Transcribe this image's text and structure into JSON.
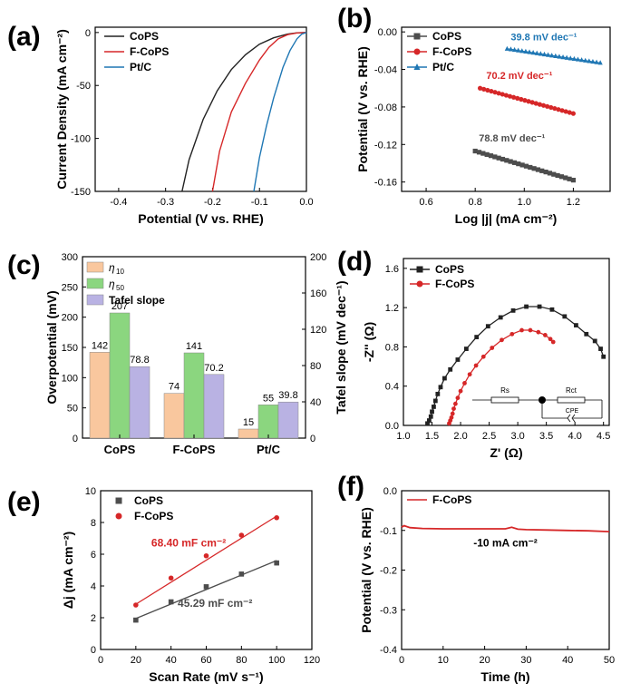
{
  "colors": {
    "black": "#222222",
    "red": "#d62728",
    "blue": "#1f77b4",
    "gray": "#4d4d4d",
    "bar_orange": "#f9c79e",
    "bar_green": "#8bd67f",
    "bar_purple": "#b9b2e3"
  },
  "chart_data": [
    {
      "panel": "(a)",
      "type": "line",
      "xlabel": "Potential (V vs. RHE)",
      "ylabel": "Current Density (mA cm⁻²)",
      "xlim": [
        -0.45,
        0.0
      ],
      "ylim": [
        -150,
        5
      ],
      "xticks": [
        "-0.4",
        "-0.3",
        "-0.2",
        "-0.1",
        "0.0"
      ],
      "yticks": [
        "0",
        "-50",
        "-100",
        "-150"
      ],
      "legend": "top-left",
      "series": [
        {
          "name": "CoPS",
          "color": "black",
          "x": [
            -0.265,
            -0.25,
            -0.22,
            -0.19,
            -0.16,
            -0.13,
            -0.1,
            -0.07,
            -0.04,
            -0.02,
            0.0
          ],
          "y": [
            -150,
            -120,
            -82,
            -55,
            -35,
            -21,
            -11,
            -5,
            -1.5,
            -0.3,
            0
          ]
        },
        {
          "name": "F-CoPS",
          "color": "red",
          "x": [
            -0.2,
            -0.185,
            -0.16,
            -0.13,
            -0.1,
            -0.08,
            -0.06,
            -0.04,
            -0.02,
            0.0
          ],
          "y": [
            -150,
            -112,
            -75,
            -48,
            -26,
            -14,
            -6,
            -2,
            -0.4,
            0
          ]
        },
        {
          "name": "Pt/C",
          "color": "blue",
          "x": [
            -0.112,
            -0.1,
            -0.085,
            -0.07,
            -0.05,
            -0.035,
            -0.02,
            -0.01,
            0.0
          ],
          "y": [
            -150,
            -118,
            -88,
            -62,
            -33,
            -17,
            -6,
            -1.5,
            0
          ]
        }
      ]
    },
    {
      "panel": "(b)",
      "type": "scatter",
      "xlabel": "Log |j| (mA cm⁻²)",
      "ylabel": "Potential (V vs. RHE)",
      "xlim": [
        0.5,
        1.35
      ],
      "ylim": [
        -0.17,
        0.005
      ],
      "xticks": [
        "0.6",
        "0.8",
        "1.0",
        "1.2"
      ],
      "yticks": [
        "0.00",
        "-0.04",
        "-0.08",
        "-0.12",
        "-0.16"
      ],
      "legend": "top-left",
      "series": [
        {
          "name": "CoPS",
          "color": "gray",
          "marker": "square",
          "x_range": [
            0.8,
            1.2
          ],
          "y_range": [
            -0.127,
            -0.158
          ],
          "annotation": "78.8 mV dec⁻¹"
        },
        {
          "name": "F-CoPS",
          "color": "red",
          "marker": "circle",
          "x_range": [
            0.82,
            1.2
          ],
          "y_range": [
            -0.06,
            -0.087
          ],
          "annotation": "70.2 mV dec⁻¹"
        },
        {
          "name": "Pt/C",
          "color": "blue",
          "marker": "triangle",
          "x_range": [
            0.93,
            1.31
          ],
          "y_range": [
            -0.018,
            -0.033
          ],
          "annotation": "39.8 mV dec⁻¹"
        }
      ]
    },
    {
      "panel": "(c)",
      "type": "bar",
      "categories": [
        "CoPS",
        "F-CoPS",
        "Pt/C"
      ],
      "ylabel": "Overpotential (mV)",
      "ylabel_right": "Tafel slope (mV dec⁻¹)",
      "ylim": [
        0,
        300
      ],
      "ylim_right": [
        0,
        200
      ],
      "yticks": [
        "0",
        "50",
        "100",
        "150",
        "200",
        "250",
        "300"
      ],
      "yticks_right": [
        "0",
        "40",
        "80",
        "120",
        "160",
        "200"
      ],
      "legend": "top-left",
      "series": [
        {
          "name": "η",
          "sub": "10",
          "color": "bar_orange",
          "values": [
            142,
            74,
            15
          ],
          "labels": [
            "142",
            "74",
            "15"
          ]
        },
        {
          "name": "η",
          "sub": "50",
          "color": "bar_green",
          "values": [
            207,
            141,
            55
          ],
          "labels": [
            "207",
            "141",
            "55"
          ]
        },
        {
          "name": "Tafel slope",
          "color": "bar_purple",
          "values": [
            78.8,
            70.2,
            39.8
          ],
          "labels": [
            "78.8",
            "70.2",
            "39.8"
          ],
          "axis": "right"
        }
      ]
    },
    {
      "panel": "(d)",
      "type": "scatter",
      "xlabel": "Z' (Ω)",
      "ylabel": "-Z'' (Ω)",
      "xlim": [
        1.0,
        4.6
      ],
      "ylim": [
        0,
        1.7
      ],
      "xticks": [
        "1.0",
        "1.5",
        "2.0",
        "2.5",
        "3.0",
        "3.5",
        "4.0",
        "4.5"
      ],
      "yticks": [
        "0.0",
        "0.4",
        "0.8",
        "1.2",
        "1.6"
      ],
      "legend": "top-left",
      "circuit_labels": [
        "Rs",
        "Rct",
        "CPE"
      ],
      "series": [
        {
          "name": "CoPS",
          "color": "black",
          "marker": "square",
          "x": [
            1.42,
            1.45,
            1.48,
            1.5,
            1.53,
            1.56,
            1.6,
            1.65,
            1.72,
            1.82,
            1.95,
            2.1,
            2.28,
            2.48,
            2.7,
            2.92,
            3.15,
            3.38,
            3.6,
            3.82,
            4.02,
            4.2,
            4.35,
            4.45,
            4.5
          ],
          "y": [
            0.02,
            0.05,
            0.09,
            0.14,
            0.19,
            0.25,
            0.32,
            0.39,
            0.48,
            0.57,
            0.67,
            0.78,
            0.9,
            1.01,
            1.1,
            1.17,
            1.21,
            1.21,
            1.18,
            1.11,
            1.02,
            0.93,
            0.86,
            0.78,
            0.7
          ]
        },
        {
          "name": "F-CoPS",
          "color": "red",
          "marker": "circle",
          "x": [
            1.8,
            1.82,
            1.84,
            1.86,
            1.88,
            1.91,
            1.95,
            2.0,
            2.07,
            2.16,
            2.27,
            2.4,
            2.55,
            2.72,
            2.9,
            3.07,
            3.22,
            3.36,
            3.48,
            3.57,
            3.62
          ],
          "y": [
            0.02,
            0.05,
            0.08,
            0.12,
            0.17,
            0.22,
            0.28,
            0.35,
            0.43,
            0.52,
            0.61,
            0.7,
            0.79,
            0.87,
            0.93,
            0.97,
            0.97,
            0.95,
            0.92,
            0.88,
            0.85
          ]
        }
      ]
    },
    {
      "panel": "(e)",
      "type": "scatter",
      "xlabel": "Scan Rate (mV s⁻¹)",
      "ylabel": "Δj (mA cm⁻²)",
      "xlim": [
        0,
        120
      ],
      "ylim": [
        0,
        10
      ],
      "xticks": [
        "0",
        "20",
        "40",
        "60",
        "80",
        "100",
        "120"
      ],
      "yticks": [
        "0",
        "2",
        "4",
        "6",
        "8",
        "10"
      ],
      "legend": "top-left",
      "series": [
        {
          "name": "CoPS",
          "color": "gray",
          "marker": "square",
          "x": [
            20,
            40,
            60,
            80,
            100
          ],
          "y": [
            1.85,
            3.0,
            3.95,
            4.75,
            5.45
          ],
          "fit": [
            [
              20,
              1.95
            ],
            [
              100,
              5.6
            ]
          ],
          "annotation": "45.29 mF cm⁻²"
        },
        {
          "name": "F-CoPS",
          "color": "red",
          "marker": "circle",
          "x": [
            20,
            40,
            60,
            80,
            100
          ],
          "y": [
            2.8,
            4.5,
            5.9,
            7.2,
            8.3
          ],
          "fit": [
            [
              20,
              2.85
            ],
            [
              100,
              8.4
            ]
          ],
          "annotation": "68.40 mF cm⁻²"
        }
      ]
    },
    {
      "panel": "(f)",
      "type": "line",
      "xlabel": "Time (h)",
      "ylabel": "Potential (V vs. RHE)",
      "xlim": [
        0,
        50
      ],
      "ylim": [
        -0.4,
        0.0
      ],
      "xticks": [
        "0",
        "10",
        "20",
        "30",
        "40",
        "50"
      ],
      "yticks": [
        "0.0",
        "-0.1",
        "-0.2",
        "-0.3",
        "-0.4"
      ],
      "legend": "top-left",
      "annotation": "-10 mA cm⁻²",
      "series": [
        {
          "name": "F-CoPS",
          "color": "red",
          "x": [
            0,
            0.6,
            2,
            5,
            10,
            15,
            20,
            25,
            26.5,
            28,
            30,
            35,
            40,
            45,
            50
          ],
          "y": [
            -0.092,
            -0.088,
            -0.093,
            -0.095,
            -0.096,
            -0.096,
            -0.096,
            -0.096,
            -0.092,
            -0.097,
            -0.098,
            -0.099,
            -0.1,
            -0.101,
            -0.103
          ]
        }
      ]
    }
  ]
}
